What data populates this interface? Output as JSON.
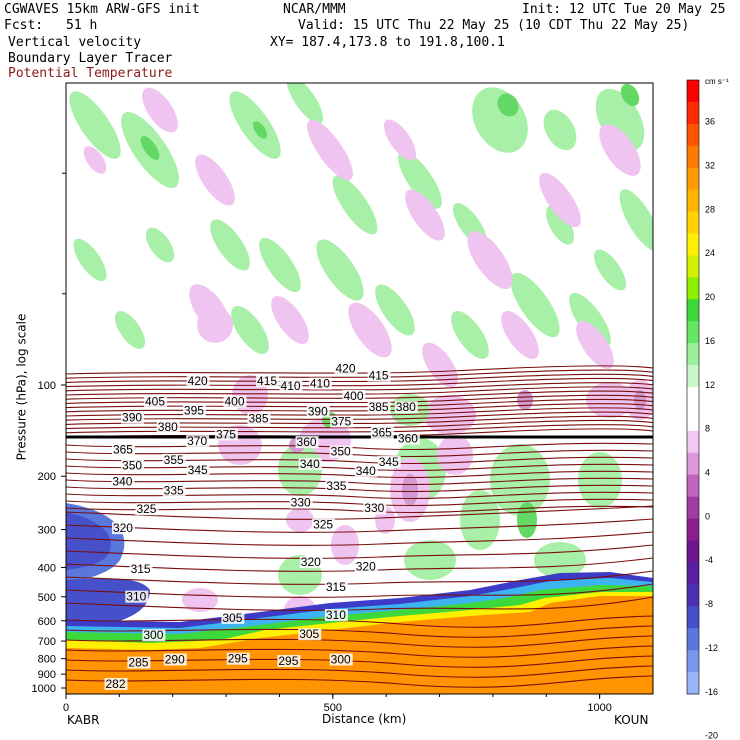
{
  "header": {
    "model_line": "CGWAVES 15km ARW-GFS init",
    "org": "NCAR/MMM",
    "init": "Init: 12 UTC Tue 20 May 25",
    "fcst_label": "Fcst:",
    "fcst_value": "51 h",
    "valid": "Valid: 15 UTC Thu 22 May 25 (10 CDT Thu 22 May 25)",
    "field1": "Vertical velocity",
    "xy": "XY= 187.4,173.8 to 191.8,100.1",
    "field2": "Boundary Layer Tracer",
    "field3": "Potential Temperature"
  },
  "chart_data": {
    "type": "cross-section",
    "y_axis": {
      "label": "Pressure (hPa), log scale",
      "scale": "log",
      "ticks": [
        100,
        200,
        300,
        400,
        500,
        600,
        700,
        800,
        900,
        1000
      ]
    },
    "x_axis": {
      "label": "Distance (km)",
      "range": [
        0,
        1100
      ],
      "ticks": [
        0,
        500,
        1000
      ],
      "left_station": "KABR",
      "right_station": "KOUN"
    },
    "colorbar": {
      "unit": "cm s⁻¹",
      "labels": [
        36,
        32,
        28,
        24,
        20,
        16,
        12,
        8,
        4,
        0,
        -4,
        -8,
        -12,
        -16,
        -20
      ],
      "colors": [
        "#ff0000",
        "#ff2a00",
        "#ff5500",
        "#ff7a00",
        "#ff9a00",
        "#ffb400",
        "#ffd200",
        "#fff000",
        "#d2f000",
        "#8cf000",
        "#3cd83c",
        "#64e664",
        "#9cf09c",
        "#c8f8c8",
        "#ffffff",
        "#ffffff",
        "#f0c8f0",
        "#dc96dc",
        "#c064c0",
        "#a03ca0",
        "#8c1e8c",
        "#6e148c",
        "#5a1ea0",
        "#4b32b4",
        "#4650c8",
        "#5a78dc",
        "#7896ec",
        "#9ab4f8"
      ]
    },
    "theta_contour_labels": [
      {
        "v": "420",
        "x": 228,
        "p": 100
      },
      {
        "v": "415",
        "x": 358,
        "p": 100
      },
      {
        "v": "410",
        "x": 402,
        "p": 104
      },
      {
        "v": "410",
        "x": 457,
        "p": 102
      },
      {
        "v": "420",
        "x": 505,
        "p": 91
      },
      {
        "v": "415",
        "x": 567,
        "p": 96
      },
      {
        "v": "405",
        "x": 148,
        "p": 117
      },
      {
        "v": "400",
        "x": 297,
        "p": 117
      },
      {
        "v": "400",
        "x": 520,
        "p": 112
      },
      {
        "v": "395",
        "x": 221,
        "p": 125
      },
      {
        "v": "390",
        "x": 105,
        "p": 132
      },
      {
        "v": "390",
        "x": 453,
        "p": 126
      },
      {
        "v": "385",
        "x": 342,
        "p": 133
      },
      {
        "v": "385",
        "x": 567,
        "p": 122
      },
      {
        "v": "380",
        "x": 618,
        "p": 122
      },
      {
        "v": "380",
        "x": 172,
        "p": 142
      },
      {
        "v": "375",
        "x": 497,
        "p": 136
      },
      {
        "v": "375",
        "x": 281,
        "p": 150
      },
      {
        "v": "370",
        "x": 227,
        "p": 158
      },
      {
        "v": "365",
        "x": 573,
        "p": 148
      },
      {
        "v": "365",
        "x": 88,
        "p": 168
      },
      {
        "v": "360",
        "x": 622,
        "p": 155
      },
      {
        "v": "360",
        "x": 432,
        "p": 159
      },
      {
        "v": "355",
        "x": 183,
        "p": 182
      },
      {
        "v": "350",
        "x": 105,
        "p": 190
      },
      {
        "v": "350",
        "x": 496,
        "p": 171
      },
      {
        "v": "345",
        "x": 228,
        "p": 197
      },
      {
        "v": "345",
        "x": 586,
        "p": 185
      },
      {
        "v": "340",
        "x": 87,
        "p": 215
      },
      {
        "v": "340",
        "x": 438,
        "p": 188
      },
      {
        "v": "340",
        "x": 543,
        "p": 198
      },
      {
        "v": "335",
        "x": 183,
        "p": 230
      },
      {
        "v": "335",
        "x": 488,
        "p": 222
      },
      {
        "v": "330",
        "x": 421,
        "p": 252
      },
      {
        "v": "330",
        "x": 559,
        "p": 263
      },
      {
        "v": "325",
        "x": 132,
        "p": 265
      },
      {
        "v": "325",
        "x": 463,
        "p": 298
      },
      {
        "v": "320",
        "x": 88,
        "p": 306
      },
      {
        "v": "320",
        "x": 440,
        "p": 396
      },
      {
        "v": "320",
        "x": 543,
        "p": 410
      },
      {
        "v": "315",
        "x": 121,
        "p": 418
      },
      {
        "v": "315",
        "x": 487,
        "p": 478
      },
      {
        "v": "310",
        "x": 113,
        "p": 515
      },
      {
        "v": "310",
        "x": 487,
        "p": 592
      },
      {
        "v": "305",
        "x": 293,
        "p": 605
      },
      {
        "v": "305",
        "x": 437,
        "p": 685
      },
      {
        "v": "300",
        "x": 145,
        "p": 690
      },
      {
        "v": "300",
        "x": 496,
        "p": 830
      },
      {
        "v": "295",
        "x": 303,
        "p": 825
      },
      {
        "v": "295",
        "x": 398,
        "p": 840
      },
      {
        "v": "290",
        "x": 185,
        "p": 830
      },
      {
        "v": "285",
        "x": 117,
        "p": 850
      },
      {
        "v": "282",
        "x": 74,
        "p": 1000
      }
    ]
  }
}
